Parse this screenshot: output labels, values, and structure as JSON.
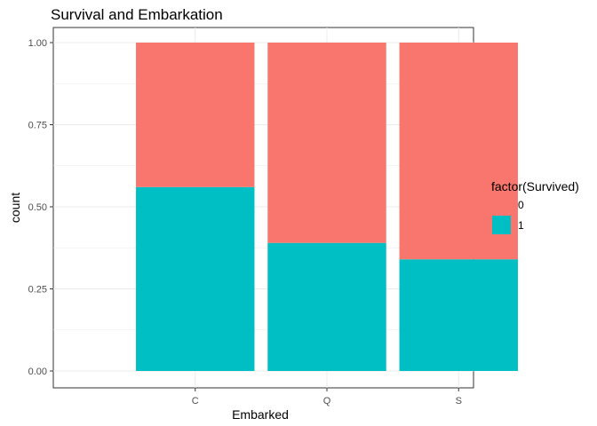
{
  "chart_data": {
    "type": "bar",
    "stacked": true,
    "position": "fill",
    "title": "Survival and Embarkation",
    "xlabel": "Embarked",
    "ylabel": "count",
    "categories": [
      "C",
      "Q",
      "S"
    ],
    "ylim": [
      0,
      1
    ],
    "yticks": [
      0,
      0.25,
      0.5,
      0.75,
      1
    ],
    "ytick_labels": [
      "0.00",
      "0.25",
      "0.50",
      "0.75",
      "1.00"
    ],
    "grid": true,
    "legend": {
      "title": "factor(Survived)",
      "placement": "right"
    },
    "series": [
      {
        "name": "1",
        "color": "#00BFC4",
        "values": [
          0.56,
          0.39,
          0.34
        ]
      },
      {
        "name": "0",
        "color": "#F8766D",
        "values": [
          0.44,
          0.61,
          0.66
        ]
      }
    ],
    "legend_order": [
      "0",
      "1"
    ]
  }
}
